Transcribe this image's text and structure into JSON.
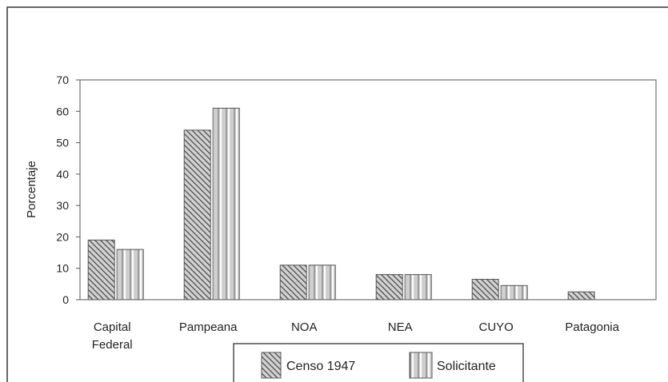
{
  "chart_data": {
    "type": "bar",
    "categories": [
      [
        "Capital",
        "Federal"
      ],
      [
        "Pampeana"
      ],
      [
        "NOA"
      ],
      [
        "NEA"
      ],
      [
        "CUYO"
      ],
      [
        "Patagonia"
      ]
    ],
    "series": [
      {
        "name": "Censo 1947",
        "values": [
          19,
          54,
          11,
          8,
          6.5,
          2.5
        ],
        "pattern": "diagonal-hatch"
      },
      {
        "name": "Solicitante",
        "values": [
          16,
          61,
          11,
          8,
          4.5,
          0
        ],
        "pattern": "vertical-lines"
      }
    ],
    "ylabel": "Porcentaje",
    "ylim": [
      0,
      70
    ],
    "yticks": [
      0,
      10,
      20,
      30,
      40,
      50,
      60,
      70
    ],
    "grid": false,
    "legend_position": "bottom-center",
    "colors": {
      "bar_fill": "#c8c8c8",
      "bar_stroke": "#555555",
      "axis": "#555555",
      "frame": "#333333"
    }
  }
}
